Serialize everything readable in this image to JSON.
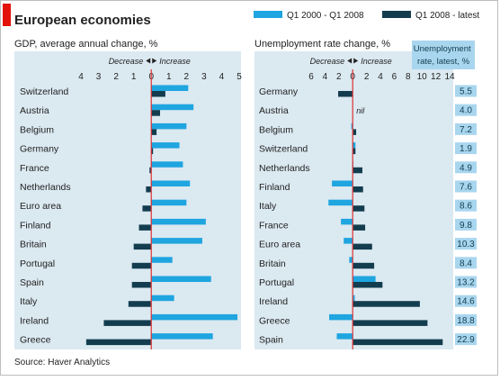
{
  "title": "European economies",
  "source": "Source: Haver Analytics",
  "colors": {
    "accent_red": "#e3120b",
    "light_blue": "#1fa5e0",
    "dark_blue": "#133d4f",
    "panel_bg": "#dbe9f1",
    "zero_line": "#e03030",
    "badge_bg": "#a9d6ef"
  },
  "legend": {
    "series_1": "Q1 2000 - Q1 2008",
    "series_2": "Q1 2008 - latest"
  },
  "direction_labels": {
    "decrease": "Decrease",
    "increase": "Increase"
  },
  "chart_data": [
    {
      "type": "bar",
      "orientation": "horizontal",
      "title": "GDP, average annual change, %",
      "categories": [
        "Switzerland",
        "Austria",
        "Belgium",
        "Germany",
        "France",
        "Netherlands",
        "Euro area",
        "Finland",
        "Britain",
        "Portugal",
        "Spain",
        "Italy",
        "Ireland",
        "Greece"
      ],
      "series": [
        {
          "name": "Q1 2000 - Q1 2008",
          "values": [
            2.1,
            2.4,
            2.0,
            1.6,
            1.8,
            2.2,
            2.0,
            3.1,
            2.9,
            1.2,
            3.4,
            1.3,
            4.9,
            3.5
          ]
        },
        {
          "name": "Q1 2008 - latest",
          "values": [
            0.8,
            0.5,
            0.3,
            0.1,
            -0.1,
            -0.3,
            -0.5,
            -0.7,
            -1.0,
            -1.1,
            -1.1,
            -1.3,
            -2.7,
            -3.7
          ]
        }
      ],
      "xticks": [
        "4",
        "3",
        "2",
        "1",
        "0",
        "1",
        "2",
        "3",
        "4",
        "5"
      ],
      "xlim": [
        -4,
        5
      ]
    },
    {
      "type": "bar",
      "orientation": "horizontal",
      "title": "Unemployment rate change, %",
      "categories": [
        "Germany",
        "Austria",
        "Belgium",
        "Switzerland",
        "Netherlands",
        "Finland",
        "Italy",
        "France",
        "Euro area",
        "Britain",
        "Portugal",
        "Ireland",
        "Greece",
        "Spain"
      ],
      "series": [
        {
          "name": "Q1 2000 - Q1 2008",
          "values": [
            0,
            0,
            -0.2,
            0.4,
            0.1,
            -3.0,
            -3.5,
            -1.7,
            -1.3,
            -0.5,
            3.3,
            0.3,
            -3.4,
            -2.3
          ]
        },
        {
          "name": "Q1 2008 - latest",
          "values": [
            -2.1,
            0,
            0.5,
            0.4,
            1.4,
            1.5,
            1.7,
            1.8,
            2.8,
            3.1,
            4.3,
            9.7,
            10.8,
            13.0
          ]
        }
      ],
      "annotation": {
        "category": "Austria",
        "text": "nil"
      },
      "xticks": [
        "6",
        "4",
        "2",
        "0",
        "2",
        "4",
        "6",
        "8",
        "10",
        "12",
        "14"
      ],
      "xlim": [
        -6,
        14
      ],
      "latest_header": "Unemployment rate, latest, %",
      "latest_values": [
        "5.5",
        "4.0",
        "7.2",
        "1.9",
        "4.9",
        "7.6",
        "8.6",
        "9.8",
        "10.3",
        "8.4",
        "13.2",
        "14.6",
        "18.8",
        "22.9"
      ]
    }
  ]
}
